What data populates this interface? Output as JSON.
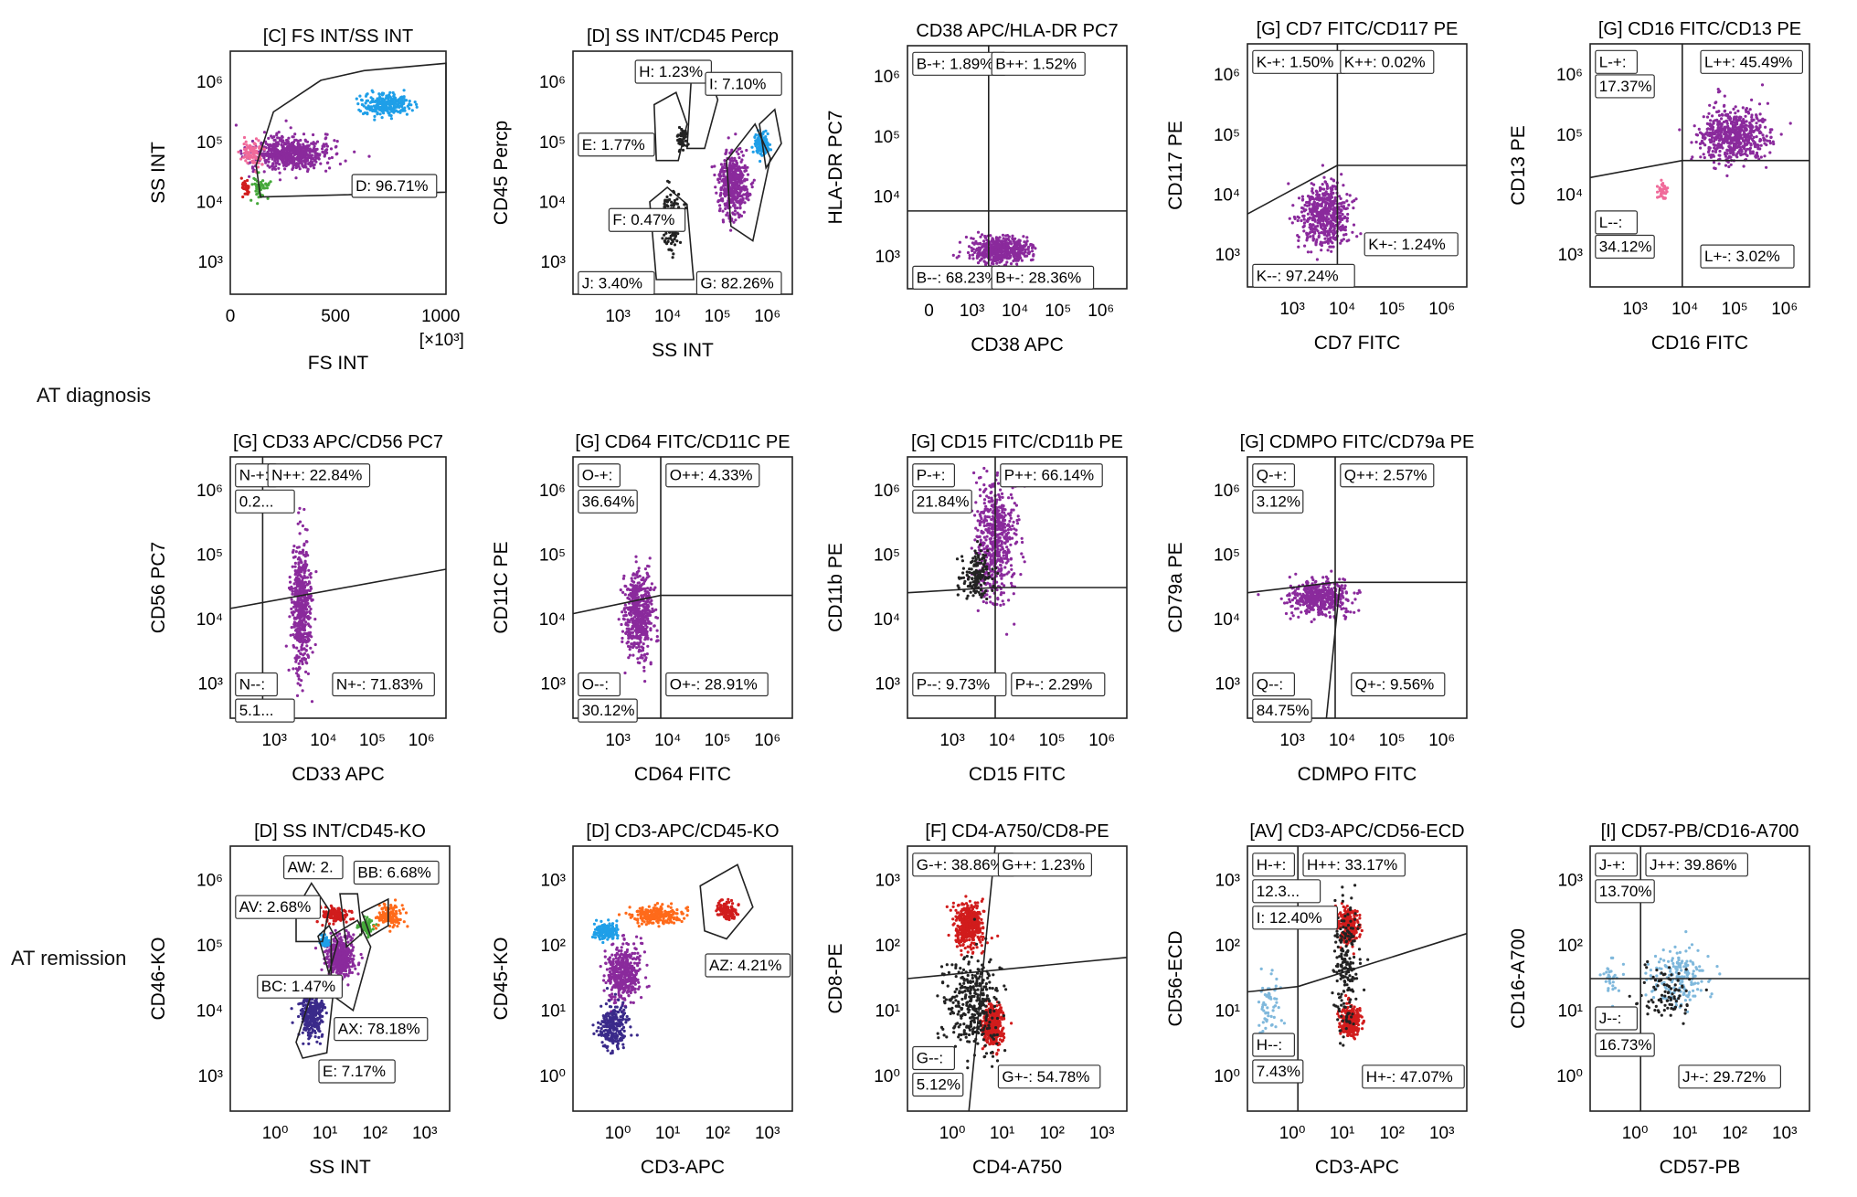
{
  "row_labels": {
    "diagnosis": "AT diagnosis",
    "remission": "AT remission"
  },
  "colors": {
    "purple": "#8a2a9c",
    "blue": "#1f9fe8",
    "red": "#d11c1c",
    "orange": "#ff6a1a",
    "green": "#45a83a",
    "pink": "#f06a9a",
    "navy": "#3a2a8a",
    "black": "#222222",
    "lightblue": "#7fb8dc"
  },
  "chart_data": [
    {
      "type": "scatter",
      "title": "[C] FS INT/SS INT",
      "xlabel": "FS INT",
      "ylabel": "SS INT",
      "x_ticks": [
        "0",
        "500",
        "1000"
      ],
      "x_extra": "[×10³]",
      "y_ticks": [
        "10³",
        "10⁴",
        "10⁵",
        "10⁶"
      ],
      "gates": [
        {
          "label": "D: 96.71%"
        }
      ]
    },
    {
      "type": "scatter",
      "title": "[D] SS INT/CD45 Percp",
      "xlabel": "SS INT",
      "ylabel": "CD45 Percp",
      "x_ticks": [
        "10³",
        "10⁴",
        "10⁵",
        "10⁶"
      ],
      "y_ticks": [
        "10³",
        "10⁴",
        "10⁵",
        "10⁶"
      ],
      "gates": [
        {
          "label": "H: 1.23%"
        },
        {
          "label": "I: 7.10%"
        },
        {
          "label": "E: 1.77%"
        },
        {
          "label": "F: 0.47%"
        },
        {
          "label": "J: 3.40%"
        },
        {
          "label": "G: 82.26%"
        }
      ]
    },
    {
      "type": "scatter",
      "title": "CD38 APC/HLA-DR PC7",
      "xlabel": "CD38 APC",
      "ylabel": "HLA-DR PC7",
      "x_ticks": [
        "0",
        "10³",
        "10⁴",
        "10⁵",
        "10⁶"
      ],
      "y_ticks": [
        "10³",
        "10⁴",
        "10⁵",
        "10⁶"
      ],
      "gates": [
        {
          "label": "B-+: 1.89%"
        },
        {
          "label": "B++: 1.52%"
        },
        {
          "label": "B--: 68.23%"
        },
        {
          "label": "B+-: 28.36%"
        }
      ]
    },
    {
      "type": "scatter",
      "title": "[G] CD7 FITC/CD117 PE",
      "xlabel": "CD7 FITC",
      "ylabel": "CD117 PE",
      "x_ticks": [
        "10³",
        "10⁴",
        "10⁵",
        "10⁶"
      ],
      "y_ticks": [
        "10³",
        "10⁴",
        "10⁵",
        "10⁶"
      ],
      "gates": [
        {
          "label": "K-+: 1.50%"
        },
        {
          "label": "K++: 0.02%"
        },
        {
          "label": "K--: 97.24%"
        },
        {
          "label": "K+-: 1.24%"
        }
      ]
    },
    {
      "type": "scatter",
      "title": "[G] CD16 FITC/CD13 PE",
      "xlabel": "CD16 FITC",
      "ylabel": "CD13 PE",
      "x_ticks": [
        "10³",
        "10⁴",
        "10⁵",
        "10⁶"
      ],
      "y_ticks": [
        "10³",
        "10⁴",
        "10⁵",
        "10⁶"
      ],
      "gates": [
        {
          "label": "L-+:"
        },
        {
          "label": "17.37%"
        },
        {
          "label": "L++: 45.49%"
        },
        {
          "label": "L--:"
        },
        {
          "label": "34.12%"
        },
        {
          "label": "L+-: 3.02%"
        }
      ]
    },
    {
      "type": "scatter",
      "title": "[G] CD33 APC/CD56 PC7",
      "xlabel": "CD33 APC",
      "ylabel": "CD56 PC7",
      "x_ticks": [
        "10³",
        "10⁴",
        "10⁵",
        "10⁶"
      ],
      "y_ticks": [
        "10³",
        "10⁴",
        "10⁵",
        "10⁶"
      ],
      "gates": [
        {
          "label": "N-+:"
        },
        {
          "label": "0.2..."
        },
        {
          "label": "N++: 22.84%"
        },
        {
          "label": "N--:"
        },
        {
          "label": "5.1..."
        },
        {
          "label": "N+-: 71.83%"
        }
      ]
    },
    {
      "type": "scatter",
      "title": "[G] CD64 FITC/CD11C PE",
      "xlabel": "CD64 FITC",
      "ylabel": "CD11C PE",
      "x_ticks": [
        "10³",
        "10⁴",
        "10⁵",
        "10⁶"
      ],
      "y_ticks": [
        "10³",
        "10⁴",
        "10⁵",
        "10⁶"
      ],
      "gates": [
        {
          "label": "O-+:"
        },
        {
          "label": "36.64%"
        },
        {
          "label": "O++: 4.33%"
        },
        {
          "label": "O--:"
        },
        {
          "label": "30.12%"
        },
        {
          "label": "O+-: 28.91%"
        }
      ]
    },
    {
      "type": "scatter",
      "title": "[G] CD15 FITC/CD11b PE",
      "xlabel": "CD15 FITC",
      "ylabel": "CD11b PE",
      "x_ticks": [
        "10³",
        "10⁴",
        "10⁵",
        "10⁶"
      ],
      "y_ticks": [
        "10³",
        "10⁴",
        "10⁵",
        "10⁶"
      ],
      "gates": [
        {
          "label": "P-+:"
        },
        {
          "label": "21.84%"
        },
        {
          "label": "P++: 66.14%"
        },
        {
          "label": "P--: 9.73%"
        },
        {
          "label": "P+-: 2.29%"
        }
      ]
    },
    {
      "type": "scatter",
      "title": "[G] CDMPO FITC/CD79a PE",
      "xlabel": "CDMPO FITC",
      "ylabel": "CD79a PE",
      "x_ticks": [
        "10³",
        "10⁴",
        "10⁵",
        "10⁶"
      ],
      "y_ticks": [
        "10³",
        "10⁴",
        "10⁵",
        "10⁶"
      ],
      "gates": [
        {
          "label": "Q-+:"
        },
        {
          "label": "3.12%"
        },
        {
          "label": "Q++: 2.57%"
        },
        {
          "label": "Q--:"
        },
        {
          "label": "84.75%"
        },
        {
          "label": "Q+-: 9.56%"
        }
      ]
    },
    {
      "type": "scatter",
      "title": "[D] SS INT/CD45-KO",
      "xlabel": "SS INT",
      "ylabel": "CD46-KO",
      "x_ticks": [
        "10⁰",
        "10¹",
        "10²",
        "10³"
      ],
      "y_ticks": [
        "10³",
        "10⁴",
        "10⁵",
        "10⁶"
      ],
      "gates": [
        {
          "label": "AW: 2."
        },
        {
          "label": "BB: 6.68%"
        },
        {
          "label": "AV: 2.68%"
        },
        {
          "label": "BC: 1.47%"
        },
        {
          "label": "AX: 78.18%"
        },
        {
          "label": "E: 7.17%"
        }
      ]
    },
    {
      "type": "scatter",
      "title": "[D] CD3-APC/CD45-KO",
      "xlabel": "CD3-APC",
      "ylabel": "CD45-KO",
      "x_ticks": [
        "10⁰",
        "10¹",
        "10²",
        "10³"
      ],
      "y_ticks": [
        "10⁰",
        "10¹",
        "10²",
        "10³"
      ],
      "gates": [
        {
          "label": "AZ: 4.21%"
        }
      ]
    },
    {
      "type": "scatter",
      "title": "[F] CD4-A750/CD8-PE",
      "xlabel": "CD4-A750",
      "ylabel": "CD8-PE",
      "x_ticks": [
        "10⁰",
        "10¹",
        "10²",
        "10³"
      ],
      "y_ticks": [
        "10⁰",
        "10¹",
        "10²",
        "10³"
      ],
      "gates": [
        {
          "label": "G-+: 38.86%"
        },
        {
          "label": "G++: 1.23%"
        },
        {
          "label": "G--:"
        },
        {
          "label": "5.12%"
        },
        {
          "label": "G+-: 54.78%"
        }
      ]
    },
    {
      "type": "scatter",
      "title": "[AV] CD3-APC/CD56-ECD",
      "xlabel": "CD3-APC",
      "ylabel": "CD56-ECD",
      "x_ticks": [
        "10⁰",
        "10¹",
        "10²",
        "10³"
      ],
      "y_ticks": [
        "10⁰",
        "10¹",
        "10²",
        "10³"
      ],
      "gates": [
        {
          "label": "H-+:"
        },
        {
          "label": "12.3..."
        },
        {
          "label": "H++: 33.17%"
        },
        {
          "label": "I: 12.40%"
        },
        {
          "label": "H--:"
        },
        {
          "label": "7.43%"
        },
        {
          "label": "H+-: 47.07%"
        }
      ]
    },
    {
      "type": "scatter",
      "title": "[I] CD57-PB/CD16-A700",
      "xlabel": "CD57-PB",
      "ylabel": "CD16-A700",
      "x_ticks": [
        "10⁰",
        "10¹",
        "10²",
        "10³"
      ],
      "y_ticks": [
        "10⁰",
        "10¹",
        "10²",
        "10³"
      ],
      "gates": [
        {
          "label": "J-+:"
        },
        {
          "label": "13.70%"
        },
        {
          "label": "J++: 39.86%"
        },
        {
          "label": "J--:"
        },
        {
          "label": "16.73%"
        },
        {
          "label": "J+-: 29.72%"
        }
      ]
    }
  ]
}
